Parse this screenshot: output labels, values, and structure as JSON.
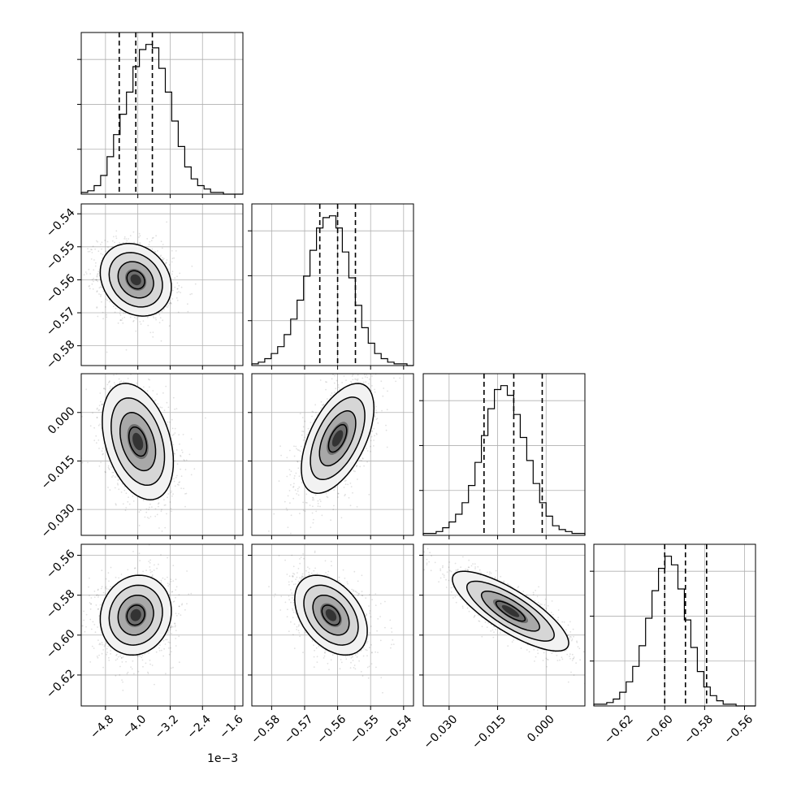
{
  "chart_data": {
    "type": "corner",
    "grid": true,
    "legend": "none",
    "colors": {
      "line": "#000000",
      "grid": "#b0b0b0",
      "background": "#ffffff"
    },
    "parameters": [
      {
        "range": [
          -0.0054,
          -0.0014
        ],
        "ticks": [
          -0.0048,
          -0.004,
          -0.0032,
          -0.0024,
          -0.0016
        ],
        "tick_labels": [
          "−4.8",
          "−4.0",
          "−3.2",
          "−2.4",
          "−1.6"
        ],
        "offset_label": "1e−3"
      },
      {
        "range": [
          -0.586,
          -0.537
        ],
        "ticks": [
          -0.58,
          -0.57,
          -0.56,
          -0.55,
          -0.54
        ],
        "tick_labels": [
          "−0.58",
          "−0.57",
          "−0.56",
          "−0.55",
          "−0.54"
        ]
      },
      {
        "range": [
          -0.038,
          0.012
        ],
        "ticks": [
          -0.03,
          -0.015,
          0.0
        ],
        "tick_labels": [
          "−0.030",
          "−0.015",
          "0.000"
        ]
      },
      {
        "range": [
          -0.6355,
          -0.5545
        ],
        "ticks": [
          -0.62,
          -0.6,
          -0.58,
          -0.56
        ],
        "tick_labels": [
          "−0.62",
          "−0.60",
          "−0.58",
          "−0.56"
        ]
      }
    ],
    "histograms": [
      {
        "param": 0,
        "counts": [
          1,
          2,
          5,
          11,
          22,
          35,
          47,
          60,
          75,
          85,
          88,
          86,
          74,
          60,
          43,
          28,
          16,
          9,
          5,
          3,
          1,
          1,
          0,
          0,
          0
        ],
        "quantiles": [
          -0.00446,
          -0.00405,
          -0.00364
        ]
      },
      {
        "param": 1,
        "counts": [
          1,
          2,
          4,
          7,
          11,
          18,
          27,
          38,
          52,
          67,
          80,
          86,
          87,
          80,
          66,
          51,
          35,
          22,
          13,
          7,
          4,
          2,
          1,
          1,
          0
        ],
        "quantiles": [
          -0.5654,
          -0.56,
          -0.5546
        ]
      },
      {
        "param": 2,
        "counts": [
          1,
          1,
          2,
          4,
          7,
          11,
          17,
          26,
          38,
          52,
          66,
          76,
          78,
          73,
          63,
          51,
          39,
          27,
          17,
          10,
          5,
          3,
          2,
          1,
          1
        ],
        "quantiles": [
          -0.0192,
          -0.01,
          -0.0012
        ]
      },
      {
        "param": 3,
        "counts": [
          1,
          1,
          2,
          4,
          8,
          14,
          23,
          35,
          51,
          67,
          80,
          87,
          82,
          68,
          50,
          34,
          20,
          11,
          6,
          3,
          1,
          1,
          0,
          0,
          0
        ],
        "quantiles": [
          -0.6,
          -0.5896,
          -0.579
        ]
      }
    ],
    "pairs": [
      {
        "x": 0,
        "y": 1,
        "center": [
          -0.00405,
          -0.56
        ],
        "sd": [
          0.00044,
          0.0055
        ],
        "corr": -0.2
      },
      {
        "x": 0,
        "y": 2,
        "center": [
          -0.004,
          -0.009
        ],
        "sd": [
          0.00044,
          0.009
        ],
        "corr": -0.35
      },
      {
        "x": 1,
        "y": 2,
        "center": [
          -0.56,
          -0.008
        ],
        "sd": [
          0.0055,
          0.0085
        ],
        "corr": 0.55
      },
      {
        "x": 0,
        "y": 3,
        "center": [
          -0.00405,
          -0.59
        ],
        "sd": [
          0.00044,
          0.01
        ],
        "corr": 0.1
      },
      {
        "x": 1,
        "y": 3,
        "center": [
          -0.562,
          -0.59
        ],
        "sd": [
          0.0055,
          0.01
        ],
        "corr": -0.4
      },
      {
        "x": 2,
        "y": 3,
        "center": [
          -0.011,
          -0.588
        ],
        "sd": [
          0.009,
          0.01
        ],
        "corr": -0.8
      }
    ]
  }
}
